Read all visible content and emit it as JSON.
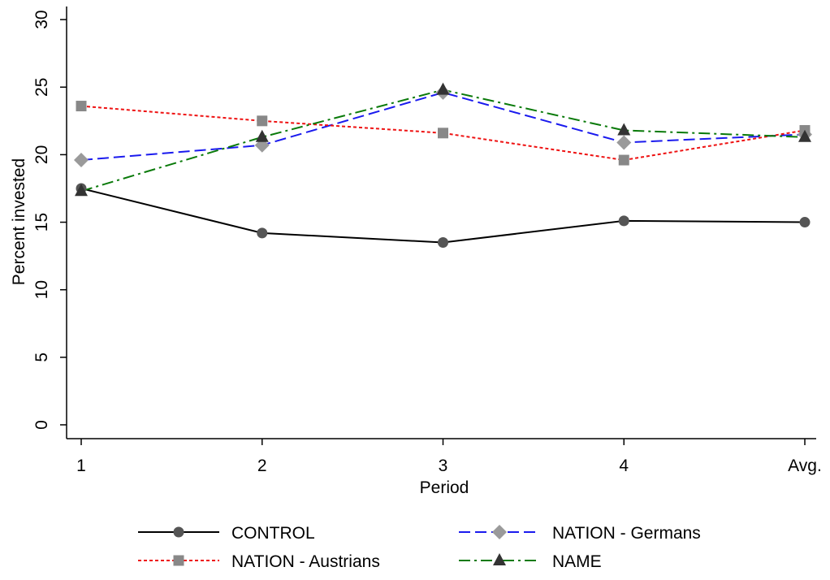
{
  "chart_data": {
    "type": "line",
    "x_label": "Period",
    "y_label": "Percent invested",
    "categories": [
      "1",
      "2",
      "3",
      "4",
      "Avg."
    ],
    "ylim": [
      -1,
      31
    ],
    "yticks": [
      0,
      5,
      10,
      15,
      20,
      25,
      30
    ],
    "legend": "bottom",
    "series": [
      {
        "name": "CONTROL",
        "color": "#000000",
        "marker": "circle",
        "marker_color": "#555555",
        "dash": "solid",
        "values": [
          17.5,
          14.2,
          13.5,
          15.1,
          15.0
        ]
      },
      {
        "name": "NATION - Germans",
        "color": "#1a1aee",
        "marker": "diamond",
        "marker_color": "#9a9a9a",
        "dash": "dashed",
        "values": [
          19.6,
          20.7,
          24.6,
          20.9,
          21.5
        ]
      },
      {
        "name": "NATION - Austrians",
        "color": "#ee1111",
        "marker": "square",
        "marker_color": "#888888",
        "dash": "dotted",
        "values": [
          23.6,
          22.5,
          21.6,
          19.6,
          21.8
        ]
      },
      {
        "name": "NAME",
        "color": "#0a7a0a",
        "marker": "triangle",
        "marker_color": "#333333",
        "dash": "dashdot",
        "values": [
          17.3,
          21.3,
          24.8,
          21.8,
          21.3
        ]
      }
    ]
  }
}
